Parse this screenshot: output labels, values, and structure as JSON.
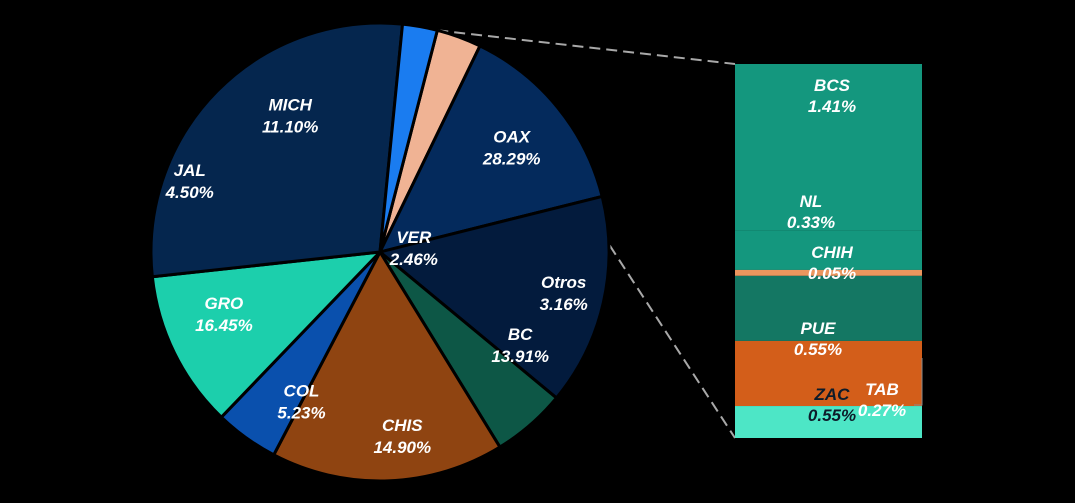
{
  "chart_data": [
    {
      "type": "pie",
      "title": "",
      "slices": [
        {
          "label": "OAX",
          "value": 28.29,
          "display": "28.29%",
          "color": "#05264e"
        },
        {
          "label": "VER",
          "value": 2.46,
          "display": "2.46%",
          "color": "#1a7cf0"
        },
        {
          "label": "Otros",
          "value": 3.16,
          "display": "3.16%",
          "color": "#f0b394"
        },
        {
          "label": "BC",
          "value": 13.91,
          "display": "13.91%",
          "color": "#042a5c"
        },
        {
          "label": "CHIS",
          "value": 14.9,
          "display": "14.90%",
          "color": "#031b3d"
        },
        {
          "label": "COL",
          "value": 5.23,
          "display": "5.23%",
          "color": "#0d5746"
        },
        {
          "label": "GRO",
          "value": 16.45,
          "display": "16.45%",
          "color": "#8f4411"
        },
        {
          "label": "JAL",
          "value": 4.5,
          "display": "4.50%",
          "color": "#0a50ad"
        },
        {
          "label": "MICH",
          "value": 11.1,
          "display": "11.10%",
          "color": "#1ccfac"
        }
      ]
    },
    {
      "type": "bar",
      "stacked": true,
      "breakdown_of": "Otros",
      "segments": [
        {
          "label": "BCS",
          "value": 1.41,
          "display": "1.41%",
          "color": "#14977e"
        },
        {
          "label": "NL",
          "value": 0.33,
          "display": "0.33%",
          "color": "#14977e"
        },
        {
          "label": "CHIH",
          "value": 0.05,
          "display": "0.05%",
          "color": "#eb965e"
        },
        {
          "label": "PUE",
          "value": 0.55,
          "display": "0.55%",
          "color": "#147763"
        },
        {
          "label": "ZAC",
          "value": 0.55,
          "display": "0.55%",
          "color": "#d35e1a"
        },
        {
          "label": "TAB",
          "value": 0.27,
          "display": "0.27%",
          "color": "#4de6c6"
        }
      ]
    }
  ]
}
